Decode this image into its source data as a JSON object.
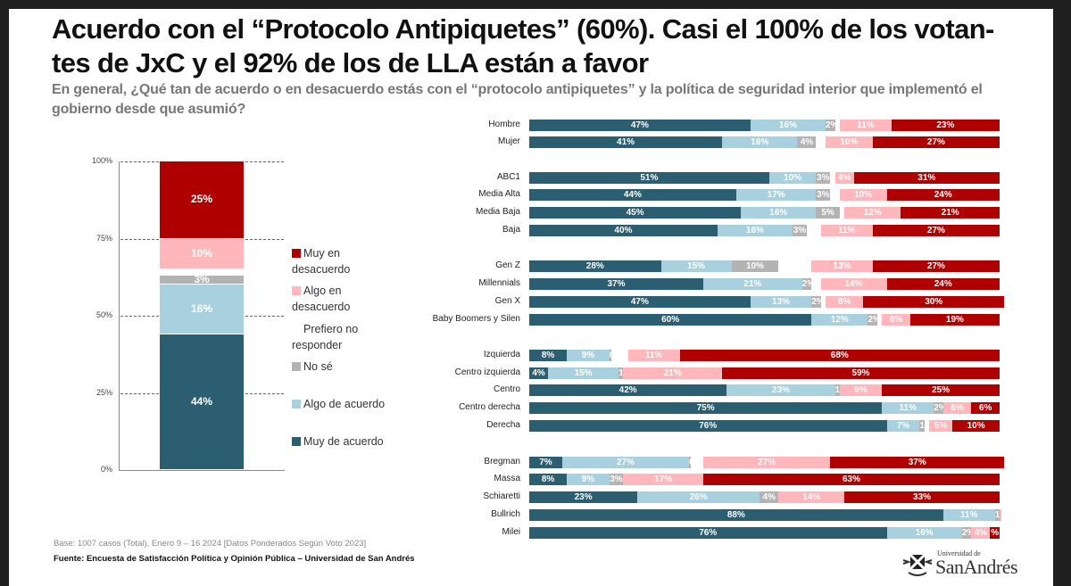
{
  "title": "Acuerdo con el “Protocolo Antipiquetes” (60%). Casi el 100% de los votan-tes de JxC y el 92% de los de LLA están a favor",
  "title_lines": [
    "Acuerdo con el “Protocolo Antipiquetes” (60%). Casi el 100% de los votan-",
    "tes de JxC y el 92% de los de LLA están a favor"
  ],
  "subtitle": "En general, ¿Qué tan de acuerdo o en desacuerdo estás con el “protocolo antipiquetes” y la política de seguridad interior que implementó el gobierno desde que asumió?",
  "footer": {
    "base": "Base: 1007 casos (Total), Enero 9 – 16 2024 [Datos Ponderados Según Voto 2023]",
    "source": "Fuente: Encuesta de Satisfacción Política y Opinión Pública – Universidad de San Andrés"
  },
  "logo": {
    "line1": "Universidad de",
    "line2": "SanAndrés"
  },
  "colors": {
    "muy_acuerdo": "#2b5e70",
    "algo_acuerdo": "#a8d0de",
    "no_se": "#b3b3b3",
    "prefiero": "#ffffff",
    "algo_desacuerdo": "#ffb7bb",
    "muy_desacuerdo": "#ae0000"
  },
  "chart_data": [
    {
      "type": "bar",
      "stacked": true,
      "orientation": "vertical",
      "categories": [
        "Total"
      ],
      "ylim": [
        0,
        100
      ],
      "yticks": [
        "0%",
        "25%",
        "50%",
        "75%",
        "100%"
      ],
      "grid": true,
      "legend_position": "right",
      "series": [
        {
          "name": "Muy de acuerdo",
          "key": "muy_acuerdo",
          "values": [
            44
          ],
          "label": "44%"
        },
        {
          "name": "Algo de acuerdo",
          "key": "algo_acuerdo",
          "values": [
            16
          ],
          "label": "16%"
        },
        {
          "name": "No sé",
          "key": "no_se",
          "values": [
            3
          ],
          "label": "3%"
        },
        {
          "name": "Prefiero no responder",
          "key": "prefiero",
          "values": [
            2
          ],
          "label": ""
        },
        {
          "name": "Algo en desacuerdo",
          "key": "algo_desacuerdo",
          "values": [
            10
          ],
          "label": "10%"
        },
        {
          "name": "Muy en desacuerdo",
          "key": "muy_desacuerdo",
          "values": [
            25
          ],
          "label": "25%"
        }
      ]
    },
    {
      "type": "bar",
      "stacked": true,
      "orientation": "horizontal",
      "segment_order": [
        "muy_acuerdo",
        "algo_acuerdo",
        "no_se",
        "prefiero",
        "algo_desacuerdo",
        "muy_desacuerdo"
      ],
      "groups": [
        {
          "rows": [
            {
              "label": "Hombre",
              "values": [
                47,
                16,
                2,
                1,
                11,
                23
              ],
              "labels": [
                "47%",
                "16%",
                "2%",
                "",
                "11%",
                "23%"
              ]
            },
            {
              "label": "Mujer",
              "values": [
                41,
                16,
                4,
                2,
                10,
                27
              ],
              "labels": [
                "41%",
                "16%",
                "4%",
                "",
                "10%",
                "27%"
              ]
            }
          ]
        },
        {
          "rows": [
            {
              "label": "ABC1",
              "values": [
                51,
                10,
                3,
                1,
                4,
                31
              ],
              "labels": [
                "51%",
                "10%",
                "3%",
                "",
                "4%",
                "31%"
              ]
            },
            {
              "label": "Media Alta",
              "values": [
                44,
                17,
                3,
                2,
                10,
                24
              ],
              "labels": [
                "44%",
                "17%",
                "3%",
                "",
                "10%",
                "24%"
              ]
            },
            {
              "label": "Media Baja",
              "values": [
                45,
                16,
                5,
                1,
                12,
                21
              ],
              "labels": [
                "45%",
                "16%",
                "5%",
                "",
                "12%",
                "21%"
              ]
            },
            {
              "label": "Baja",
              "values": [
                40,
                16,
                3,
                3,
                11,
                27
              ],
              "labels": [
                "40%",
                "16%",
                "3%",
                "",
                "11%",
                "27%"
              ]
            }
          ]
        },
        {
          "rows": [
            {
              "label": "Gen Z",
              "values": [
                28,
                15,
                10,
                7,
                13,
                27
              ],
              "labels": [
                "28%",
                "15%",
                "10%",
                "",
                "13%",
                "27%"
              ]
            },
            {
              "label": "Millennials",
              "values": [
                37,
                21,
                2,
                2,
                14,
                24
              ],
              "labels": [
                "37%",
                "21%",
                "2%",
                "",
                "14%",
                "24%"
              ]
            },
            {
              "label": "Gen X",
              "values": [
                47,
                13,
                2,
                1,
                8,
                30
              ],
              "labels": [
                "47%",
                "13%",
                "2%",
                "",
                "8%",
                "30%"
              ]
            },
            {
              "label": "Baby Boomers y Silen",
              "values": [
                60,
                12,
                2,
                1,
                6,
                19
              ],
              "labels": [
                "60%",
                "12%",
                "2%",
                "",
                "6%",
                "19%"
              ]
            }
          ]
        },
        {
          "rows": [
            {
              "label": "Izquierda",
              "values": [
                8,
                9,
                0.4,
                3.6,
                11,
                68
              ],
              "labels": [
                "8%",
                "9%",
                "0",
                "",
                "11%",
                "68%"
              ]
            },
            {
              "label": "Centro izquierda",
              "values": [
                4,
                15,
                1,
                0,
                21,
                59
              ],
              "labels": [
                "4%",
                "15%",
                "1%",
                "",
                "21%",
                "59%"
              ]
            },
            {
              "label": "Centro",
              "values": [
                42,
                23,
                1,
                0,
                9,
                25
              ],
              "labels": [
                "42%",
                "23%",
                "1%",
                "",
                "9%",
                "25%"
              ]
            },
            {
              "label": "Centro derecha",
              "values": [
                75,
                11,
                2,
                0,
                6,
                6
              ],
              "labels": [
                "75%",
                "11%",
                "2%",
                "",
                "6%",
                "6%"
              ]
            },
            {
              "label": "Derecha",
              "values": [
                76,
                7,
                1,
                1,
                5,
                10
              ],
              "labels": [
                "76%",
                "7%",
                "1%",
                "",
                "5%",
                "10%"
              ]
            }
          ]
        },
        {
          "rows": [
            {
              "label": "Bregman",
              "values": [
                7,
                27,
                0.4,
                2.6,
                27,
                37
              ],
              "labels": [
                "7%",
                "27%",
                "0",
                "",
                "27%",
                "37%"
              ]
            },
            {
              "label": "Massa",
              "values": [
                8,
                9,
                3,
                0,
                17,
                63
              ],
              "labels": [
                "8%",
                "9%",
                "3%",
                "",
                "17%",
                "63%"
              ]
            },
            {
              "label": "Schiaretti",
              "values": [
                23,
                26,
                4,
                0,
                14,
                33
              ],
              "labels": [
                "23%",
                "26%",
                "4%",
                "",
                "14%",
                "33%"
              ]
            },
            {
              "label": "Bullrich",
              "values": [
                88,
                11,
                1,
                0,
                0.3,
                0
              ],
              "labels": [
                "88%",
                "11%",
                "1%",
                "",
                "",
                ""
              ]
            },
            {
              "label": "Milei",
              "values": [
                76,
                16,
                2,
                0,
                4,
                2
              ],
              "labels": [
                "76%",
                "16%",
                "2%",
                "",
                "4%",
                "%"
              ]
            }
          ]
        }
      ]
    }
  ]
}
